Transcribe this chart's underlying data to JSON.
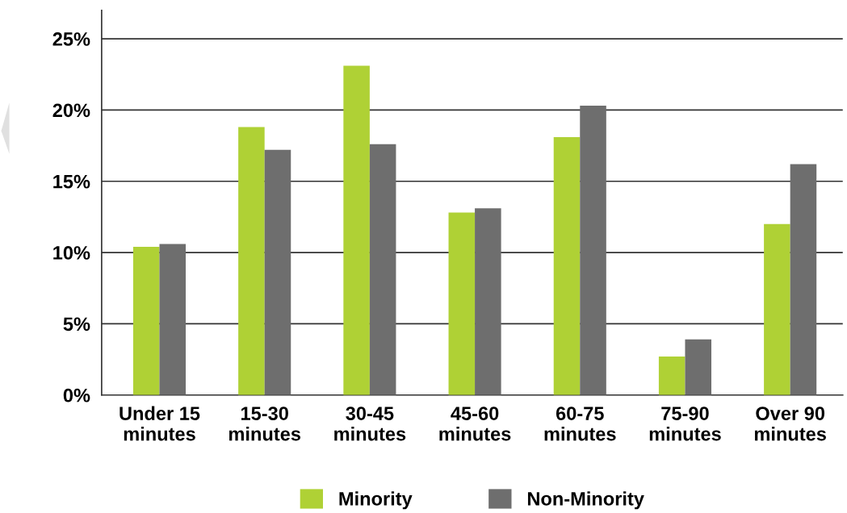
{
  "chart_data": {
    "type": "bar",
    "categories": [
      "Under 15\nminutes",
      "15-30\nminutes",
      "30-45\nminutes",
      "45-60\nminutes",
      "60-75\nminutes",
      "75-90\nminutes",
      "Over 90\nminutes"
    ],
    "series": [
      {
        "name": "Minority",
        "color": "#afd135",
        "values": [
          10.4,
          18.8,
          23.1,
          12.8,
          18.1,
          2.7,
          12.0
        ]
      },
      {
        "name": "Non-Minority",
        "color": "#6e6e6e",
        "values": [
          10.6,
          17.2,
          17.6,
          13.1,
          20.3,
          3.9,
          16.2
        ]
      }
    ],
    "ylim": [
      0,
      27
    ],
    "yticks": [
      {
        "value": 0,
        "label": "0%"
      },
      {
        "value": 5,
        "label": "5%"
      },
      {
        "value": 10,
        "label": "10%"
      },
      {
        "value": 15,
        "label": "15%"
      },
      {
        "value": 20,
        "label": "20%"
      },
      {
        "value": 25,
        "label": "25%"
      }
    ],
    "grid": "y",
    "legend": "bottom"
  }
}
